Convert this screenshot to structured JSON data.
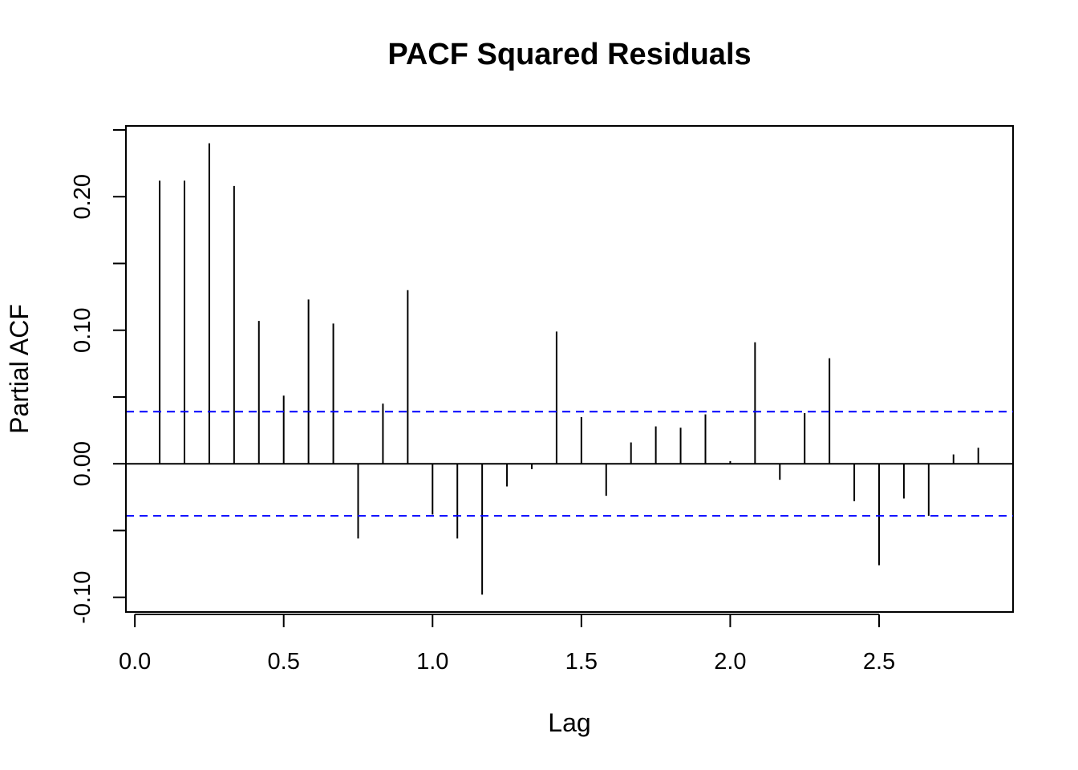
{
  "chart_data": {
    "type": "bar",
    "title": "PACF Squared Residuals",
    "xlabel": "Lag",
    "ylabel": "Partial ACF",
    "x_ticks": [
      "0.0",
      "0.5",
      "1.0",
      "1.5",
      "2.0",
      "2.5"
    ],
    "y_ticks": [
      "-0.10",
      "0.00",
      "0.10",
      "0.20"
    ],
    "xlim": [
      -0.03,
      2.95
    ],
    "ylim": [
      -0.111,
      0.253
    ],
    "x_tick_values": [
      0,
      0.5,
      1.0,
      1.5,
      2.0,
      2.5
    ],
    "y_tick_values": [
      -0.1,
      -0.05,
      0,
      0.05,
      0.1,
      0.15,
      0.2,
      0.25
    ],
    "y_tick_labels_at": [
      -0.1,
      0,
      0.1,
      0.2
    ],
    "confidence_bound": 0.039,
    "grid": false,
    "colors": {
      "bars": "#000000",
      "bounds": "#0000ff"
    },
    "lag_step": 0.0833333,
    "values": [
      0.212,
      0.212,
      0.24,
      0.208,
      0.107,
      0.051,
      0.123,
      0.105,
      -0.056,
      0.045,
      0.13,
      -0.038,
      -0.056,
      -0.098,
      -0.017,
      -0.004,
      0.099,
      0.035,
      -0.024,
      0.016,
      0.028,
      0.027,
      0.037,
      0.002,
      0.091,
      -0.012,
      0.038,
      0.079,
      -0.028,
      -0.076,
      -0.026,
      -0.039,
      0.007,
      0.012
    ]
  }
}
